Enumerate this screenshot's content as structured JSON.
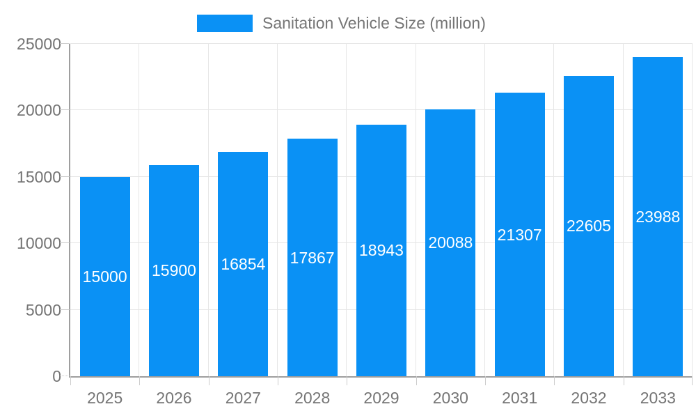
{
  "chart_data": {
    "type": "bar",
    "title": "Sanitation Vehicle Size (million)",
    "legend": {
      "label": "Sanitation Vehicle Size (million)",
      "position": "top-center"
    },
    "categories": [
      "2025",
      "2026",
      "2027",
      "2028",
      "2029",
      "2030",
      "2031",
      "2032",
      "2033"
    ],
    "series": [
      {
        "name": "Sanitation Vehicle Size (million)",
        "values": [
          15000,
          15900,
          16854,
          17867,
          18943,
          20088,
          21307,
          22605,
          23988
        ]
      }
    ],
    "value_labels": [
      "15000",
      "15900",
      "16854",
      "17867",
      "18943",
      "20088",
      "21307",
      "22605",
      "23988"
    ],
    "value_labels_position": "inside-center",
    "xlabel": "",
    "ylabel": "",
    "ylim": [
      0,
      25000
    ],
    "yticks": [
      0,
      5000,
      10000,
      15000,
      20000,
      25000
    ],
    "ytick_labels": [
      "0",
      "5000",
      "10000",
      "15000",
      "20000",
      "25000"
    ],
    "grid": true,
    "colors": {
      "bar": "#0a91f5",
      "grid": "#e6e6e6",
      "axis": "#9e9e9e",
      "tick": "#cccccc",
      "axis_text": "#757575",
      "value_label_text": "#ffffff",
      "background": "#ffffff"
    }
  }
}
